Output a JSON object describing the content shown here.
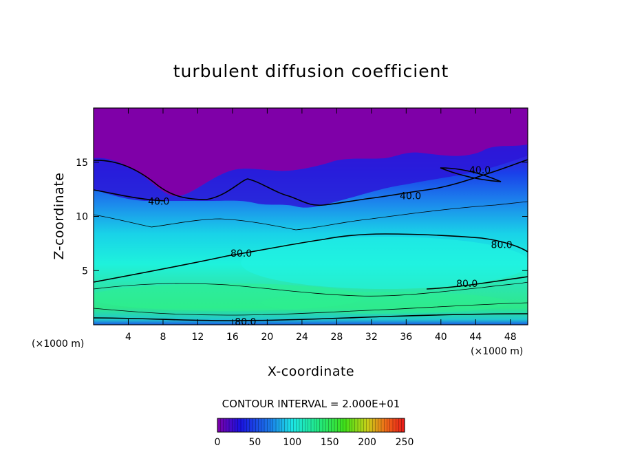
{
  "chart_data": {
    "type": "heatmap",
    "title": "turbulent diffusion coefficient",
    "xlabel": "X-coordinate",
    "ylabel": "Z-coordinate",
    "x_unit_left": "(×1000 m)",
    "x_unit_right": "(×1000 m)",
    "xlim": [
      0,
      50
    ],
    "ylim": [
      0,
      20
    ],
    "xticks": [
      4,
      8,
      12,
      16,
      20,
      24,
      28,
      32,
      36,
      40,
      44,
      48
    ],
    "yticks": [
      5,
      10,
      15
    ],
    "grid": false,
    "contour_interval_text": "CONTOUR INTERVAL = 2.000E+01",
    "colorbar": {
      "min": 0,
      "max": 250,
      "ticks": [
        0,
        50,
        100,
        150,
        200,
        250
      ]
    },
    "contour_labels": [
      {
        "text": "40.0",
        "x": 7.5,
        "y": 11.4
      },
      {
        "text": "40.0",
        "x": 36.5,
        "y": 11.9
      },
      {
        "text": "40.0",
        "x": 44.5,
        "y": 14.3
      },
      {
        "text": "80.0",
        "x": 17.0,
        "y": 6.6
      },
      {
        "text": "80.0",
        "x": 47.0,
        "y": 7.4
      },
      {
        "text": "80.0",
        "x": 43.0,
        "y": 3.8
      },
      {
        "text": "80.0",
        "x": 17.5,
        "y": 0.3
      }
    ],
    "colors": {
      "top": "#7f00a8",
      "cyan": "#1ff0e0",
      "green": "#2ee6a0",
      "blue": "#1a5ae6"
    }
  }
}
